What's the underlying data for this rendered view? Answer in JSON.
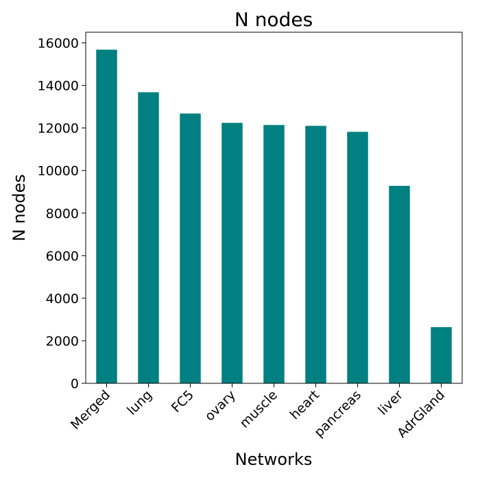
{
  "chart_data": {
    "type": "bar",
    "title": "N nodes",
    "xlabel": "Networks",
    "ylabel": "N nodes",
    "categories": [
      "Merged",
      "lung",
      "FC5",
      "ovary",
      "muscle",
      "heart",
      "pancreas",
      "liver",
      "AdrGland"
    ],
    "values": [
      15680,
      13680,
      12680,
      12240,
      12140,
      12100,
      11820,
      9280,
      2640
    ],
    "ylim": [
      0,
      16500
    ],
    "yticks": [
      0,
      2000,
      4000,
      6000,
      8000,
      10000,
      12000,
      14000,
      16000
    ],
    "bar_color": "#008080",
    "grid": false,
    "legend": "none"
  }
}
